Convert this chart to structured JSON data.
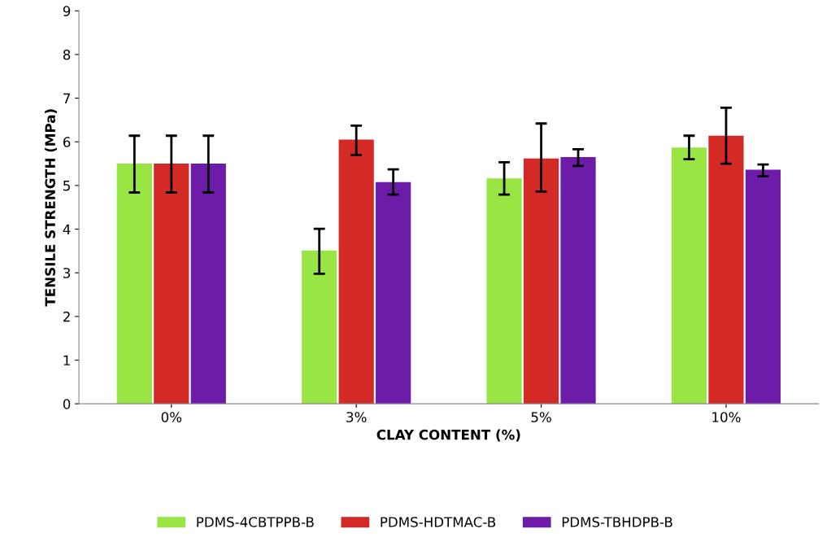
{
  "chart_data": {
    "type": "bar",
    "xlabel": "CLAY CONTENT (%)",
    "ylabel": "TENSILE STRENGTH (MPa)",
    "categories": [
      "0%",
      "3%",
      "5%",
      "10%"
    ],
    "series": [
      {
        "name": "PDMS-4CBTPPB-B",
        "color": "#98e544",
        "values": [
          5.5,
          3.51,
          5.16,
          5.87
        ],
        "errors": [
          [
            4.84,
            6.14
          ],
          [
            2.98,
            4.01
          ],
          [
            4.79,
            5.53
          ],
          [
            5.6,
            6.14
          ]
        ]
      },
      {
        "name": "PDMS-HDTMAC-B",
        "color": "#d42a26",
        "values": [
          5.5,
          6.05,
          5.62,
          6.14
        ],
        "errors": [
          [
            4.84,
            6.14
          ],
          [
            5.7,
            6.37
          ],
          [
            4.86,
            6.42
          ],
          [
            5.5,
            6.78
          ]
        ]
      },
      {
        "name": "PDMS-TBHDPB-B",
        "color": "#6c1ca8",
        "values": [
          5.5,
          5.08,
          5.65,
          5.36
        ],
        "errors": [
          [
            4.84,
            6.14
          ],
          [
            4.79,
            5.37
          ],
          [
            5.45,
            5.83
          ],
          [
            5.21,
            5.48
          ]
        ]
      }
    ],
    "ylim": [
      0,
      9
    ],
    "yticks": [
      0,
      1,
      2,
      3,
      4,
      5,
      6,
      7,
      8,
      9
    ],
    "grid": false,
    "legend": "bottom"
  }
}
